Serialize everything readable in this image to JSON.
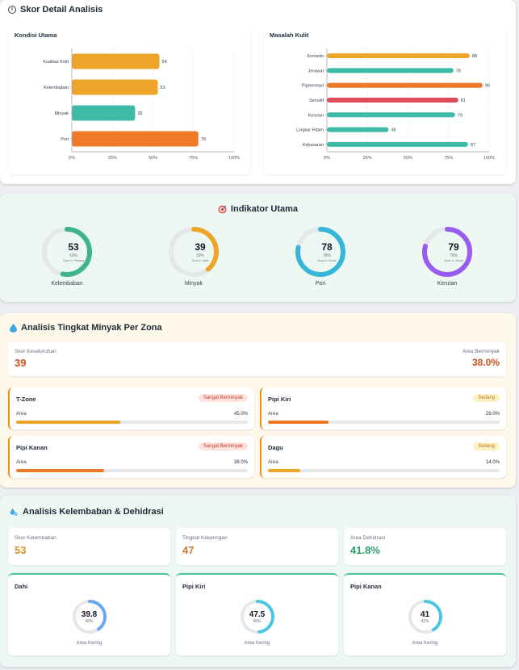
{
  "detail": {
    "title": "Skor Detail Analisis",
    "kondisi": {
      "title": "Kondisi Utama",
      "ticks": [
        "0%",
        "25%",
        "50%",
        "75%",
        "100%"
      ]
    },
    "masalah": {
      "title": "Masalah Kulit",
      "ticks": [
        "0%",
        "25%",
        "50%",
        "75%",
        "100%"
      ]
    }
  },
  "chart_data": [
    {
      "type": "bar",
      "orientation": "horizontal",
      "title": "Kondisi Utama",
      "categories": [
        "Kualitas Kulit",
        "Kelembaban",
        "Minyak",
        "Pori"
      ],
      "values": [
        54,
        53,
        39,
        78
      ],
      "colors": [
        "#eea62a",
        "#eea62a",
        "#3dbba6",
        "#ee7a28"
      ],
      "xlim": [
        0,
        100
      ],
      "grid": true
    },
    {
      "type": "bar",
      "orientation": "horizontal",
      "title": "Masalah Kulit",
      "categories": [
        "Komedo",
        "Jerawat",
        "Pigmentasi",
        "Sensitif",
        "Kerutan",
        "Lingkar Hitam",
        "Kekasaran"
      ],
      "values": [
        88,
        78,
        96,
        81,
        79,
        38,
        87
      ],
      "colors": [
        "#eea62a",
        "#3dbba6",
        "#ee7a28",
        "#e04b5a",
        "#3dbba6",
        "#3dbba6",
        "#3dbba6"
      ],
      "xlim": [
        0,
        100
      ],
      "grid": true
    }
  ],
  "indikator": {
    "title": "Indikator Utama",
    "items": [
      {
        "value": "53",
        "pct": "53%",
        "zone": "Zona 3 • Sedang",
        "label": "Kelembaban",
        "fraction": 0.53,
        "color": "#3db58a"
      },
      {
        "value": "39",
        "pct": "39%",
        "zone": "Zona 2 • Baik",
        "label": "Minyak",
        "fraction": 0.39,
        "color": "#eea62a"
      },
      {
        "value": "78",
        "pct": "78%",
        "zone": "Zona 4 • Buruk",
        "label": "Pori",
        "fraction": 0.78,
        "color": "#38b6d8"
      },
      {
        "value": "79",
        "pct": "79%",
        "zone": "Zona 4 • Buruk",
        "label": "Kerutan",
        "fraction": 0.79,
        "color": "#9a5cf0"
      }
    ]
  },
  "minyak": {
    "title": "Analisis Tingkat Minyak Per Zona",
    "overall_label": "Skor Keseluruhan",
    "overall_value": "39",
    "area_label": "Area Berminyak",
    "area_value": "38.0%",
    "zones": [
      {
        "name": "T-Zone",
        "badge": "Sangat Berminyak",
        "badge_type": "red",
        "area_label": "Area",
        "area_value": "45.0%",
        "fraction": 0.45,
        "color": "#eea62a"
      },
      {
        "name": "Pipi Kiri",
        "badge": "Sedang",
        "badge_type": "yel",
        "area_label": "Area",
        "area_value": "26.0%",
        "fraction": 0.26,
        "color": "#ee7a28"
      },
      {
        "name": "Pipi Kanan",
        "badge": "Sangat Berminyak",
        "badge_type": "red",
        "area_label": "Area",
        "area_value": "38.0%",
        "fraction": 0.38,
        "color": "#ee7a28"
      },
      {
        "name": "Dagu",
        "badge": "Sedang",
        "badge_type": "yel",
        "area_label": "Area",
        "area_value": "14.0%",
        "fraction": 0.14,
        "color": "#eea62a"
      }
    ]
  },
  "kelembaban": {
    "title": "Analisis Kelembaban & Dehidrasi",
    "stats": [
      {
        "label": "Skor Kelembaban",
        "value": "53",
        "color": "#d4912b"
      },
      {
        "label": "Tingkat Kekeringan",
        "value": "47",
        "color": "#d4792b"
      },
      {
        "label": "Area Dehidrasi",
        "value": "41.8%",
        "color": "#2f9e6e"
      }
    ],
    "zones": [
      {
        "name": "Dahi",
        "value": "39.8",
        "pct": "40%",
        "label": "Area Kering",
        "fraction": 0.4,
        "color": "#6aa8f0"
      },
      {
        "name": "Pipi Kiri",
        "value": "47.5",
        "pct": "48%",
        "label": "Area Kering",
        "fraction": 0.48,
        "color": "#4cc7e3"
      },
      {
        "name": "Pipi Kanan",
        "value": "41",
        "pct": "41%",
        "label": "Area Kering",
        "fraction": 0.41,
        "color": "#4cc7e3"
      }
    ]
  }
}
